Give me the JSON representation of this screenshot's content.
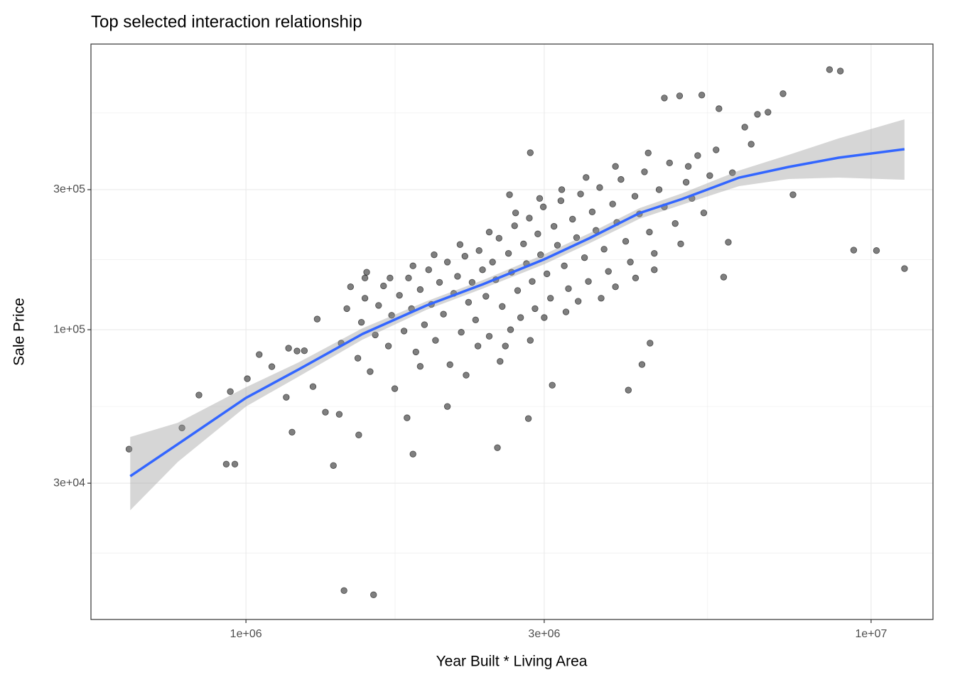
{
  "chart_data": {
    "type": "scatter",
    "title": "Top selected interaction relationship",
    "x_label": "Year Built * Living Area",
    "y_label": "Sale Price",
    "xscale": "log",
    "yscale": "log",
    "grid": true,
    "xlim": [
      565000,
      12560000
    ],
    "ylim": [
      10300,
      940000
    ],
    "xticks": [
      {
        "value": 1000000,
        "label": "1e+06"
      },
      {
        "value": 3000000,
        "label": "3e+06"
      },
      {
        "value": 10000000,
        "label": "1e+07"
      }
    ],
    "yticks": [
      {
        "value": 30000,
        "label": "3e+04"
      },
      {
        "value": 100000,
        "label": "1e+05"
      },
      {
        "value": 300000,
        "label": "3e+05"
      }
    ],
    "x_minor_ticks": [
      1732000,
      5477000
    ],
    "y_minor_ticks": [
      17320,
      54770,
      173200,
      547700
    ],
    "points": {
      "color": "#000000",
      "x": [
        1420000,
        1450000,
        1470000,
        1510000,
        1530000,
        1550000,
        1580000,
        1610000,
        1630000,
        1660000,
        1690000,
        1710000,
        1730000,
        1760000,
        1790000,
        1820000,
        1840000,
        1870000,
        1900000,
        1930000,
        1960000,
        1980000,
        2010000,
        2040000,
        2070000,
        2100000,
        2120000,
        2150000,
        2180000,
        2210000,
        2240000,
        2270000,
        2300000,
        2330000,
        2360000,
        2390000,
        2420000,
        2450000,
        2480000,
        2510000,
        2540000,
        2570000,
        2600000,
        2630000,
        2660000,
        2690000,
        2720000,
        2750000,
        2780000,
        2810000,
        2840000,
        2870000,
        2900000,
        2930000,
        2960000,
        2990000,
        3030000,
        3070000,
        3110000,
        3150000,
        3190000,
        3230000,
        3280000,
        3330000,
        3380000,
        3430000,
        3480000,
        3530000,
        3580000,
        3630000,
        3680000,
        3740000,
        3800000,
        3860000,
        3920000,
        3980000,
        4050000,
        4120000,
        4190000,
        4260000,
        4340000,
        4420000,
        4500000,
        4580000,
        4670000,
        4760000,
        4860000,
        4960000,
        5060000,
        5170000,
        5280000,
        5400000,
        5520000,
        5650000,
        5100000,
        4400000,
        3900000,
        3500000,
        3200000,
        2950000,
        2700000,
        2450000,
        2200000,
        2000000,
        1850000,
        1700000,
        2350000,
        2650000,
        3000000,
        3400000,
        3900000,
        4500000,
        1550000,
        1900000,
        2250000,
        2550000,
        2850000,
        3250000,
        3700000,
        4200000,
        650000,
        790000,
        841000,
        944000,
        930000,
        960000,
        1005000,
        1050000,
        1100000,
        1160000,
        1170000,
        1185000,
        1207000,
        1240000,
        1280000,
        1300000,
        1340000,
        1380000,
        1410000,
        1435000,
        1515000,
        1560000,
        1600000,
        1810000,
        1850000,
        2100000,
        2525000,
        2830000,
        2640000,
        2850000,
        3090000,
        4090000,
        4300000,
        4430000,
        4670000,
        4940000,
        5360000,
        5710000,
        5810000,
        5910000,
        6280000,
        6430000,
        6580000,
        6840000,
        7230000,
        7500000,
        8580000,
        8930000,
        9380000,
        10200000,
        11310000,
        6000000
      ],
      "y": [
        90000,
        118000,
        140000,
        80000,
        106000,
        128000,
        72000,
        96000,
        121000,
        141000,
        88000,
        112000,
        63000,
        131000,
        99000,
        150000,
        118000,
        84000,
        137000,
        104000,
        160000,
        122000,
        92000,
        145000,
        113000,
        170000,
        76000,
        133000,
        152000,
        98000,
        178000,
        124000,
        145000,
        108000,
        186000,
        160000,
        130000,
        95000,
        170000,
        148000,
        205000,
        120000,
        88000,
        182000,
        157000,
        226000,
        136000,
        110000,
        196000,
        168000,
        240000,
        146000,
        118000,
        212000,
        180000,
        262000,
        155000,
        128000,
        225000,
        194000,
        275000,
        165000,
        138000,
        238000,
        206000,
        290000,
        176000,
        146000,
        252000,
        218000,
        305000,
        188000,
        158000,
        268000,
        232000,
        325000,
        200000,
        170000,
        285000,
        248000,
        345000,
        215000,
        182000,
        300000,
        262000,
        370000,
        230000,
        196000,
        318000,
        280000,
        392000,
        250000,
        335000,
        410000,
        360000,
        400000,
        360000,
        330000,
        300000,
        280000,
        250000,
        215000,
        195000,
        180000,
        165000,
        150000,
        88000,
        100000,
        110000,
        125000,
        140000,
        160000,
        150000,
        75000,
        70000,
        78000,
        92000,
        115000,
        128000,
        150000,
        39200,
        46300,
        59900,
        61550,
        34850,
        34850,
        68080,
        82300,
        74840,
        58880,
        86500,
        44780,
        84600,
        84800,
        64000,
        108700,
        52370,
        34460,
        51500,
        12920,
        43800,
        157000,
        12500,
        50100,
        37700,
        54760,
        39640,
        49800,
        288400,
        400900,
        64720,
        62260,
        76110,
        90000,
        615800,
        626200,
        629900,
        566200,
        151100,
        198600,
        489800,
        428500,
        541700,
        550800,
        636800,
        288400,
        769200,
        760600,
        186700,
        186000,
        161500,
        342800
      ]
    },
    "smooth": {
      "color": "#3366ff",
      "band_color": "#999999",
      "x": [
        653000,
        778000,
        1000000,
        1214000,
        1536000,
        1944000,
        2396000,
        3000000,
        3550000,
        4260000,
        4990000,
        6150000,
        7380000,
        8870000,
        11310000
      ],
      "y": [
        31700,
        40760,
        58560,
        73200,
        96700,
        120900,
        142900,
        173700,
        205300,
        249500,
        279000,
        329800,
        358500,
        385500,
        412100
      ],
      "lower": [
        24270,
        35450,
        54760,
        69210,
        92500,
        116900,
        138200,
        167100,
        197400,
        238700,
        266800,
        308400,
        326000,
        329800,
        324300
      ],
      "upper": [
        43100,
        48180,
        63670,
        77390,
        101100,
        125000,
        147700,
        180600,
        213500,
        259400,
        291700,
        348700,
        394100,
        448100,
        520800
      ]
    }
  }
}
